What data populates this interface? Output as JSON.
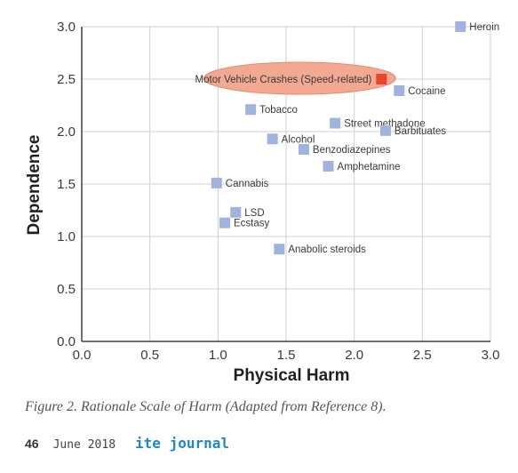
{
  "chart_data": {
    "type": "scatter",
    "xlabel": "Physical Harm",
    "ylabel": "Dependence",
    "xlim": [
      0,
      3
    ],
    "ylim": [
      0,
      3
    ],
    "xticks": [
      "0.0",
      "0.5",
      "1.0",
      "1.5",
      "2.0",
      "2.5",
      "3.0"
    ],
    "yticks": [
      "0.0",
      "0.5",
      "1.0",
      "1.5",
      "2.0",
      "2.5",
      "3.0"
    ],
    "grid": true,
    "highlight_color": "#e8452c",
    "highlight_ellipse_color": "#f3a892",
    "point_color": "#9fb3dd",
    "points": [
      {
        "label": "Heroin",
        "x": 2.78,
        "y": 3.0
      },
      {
        "label": "Motor Vehicle Crashes (Speed-related)",
        "x": 2.2,
        "y": 2.5,
        "highlight": true
      },
      {
        "label": "Cocaine",
        "x": 2.33,
        "y": 2.39
      },
      {
        "label": "Tobacco",
        "x": 1.24,
        "y": 2.21
      },
      {
        "label": "Street methadone",
        "x": 1.86,
        "y": 2.08
      },
      {
        "label": "Barbituates",
        "x": 2.23,
        "y": 2.01
      },
      {
        "label": "Alcohol",
        "x": 1.4,
        "y": 1.93
      },
      {
        "label": "Benzodiazepines",
        "x": 1.63,
        "y": 1.83
      },
      {
        "label": "Amphetamine",
        "x": 1.81,
        "y": 1.67
      },
      {
        "label": "Cannabis",
        "x": 0.99,
        "y": 1.51
      },
      {
        "label": "LSD",
        "x": 1.13,
        "y": 1.23
      },
      {
        "label": "Ecstasy",
        "x": 1.05,
        "y": 1.13
      },
      {
        "label": "Anabolic steroids",
        "x": 1.45,
        "y": 0.88
      }
    ]
  },
  "caption": "Figure 2. Rationale Scale of Harm (Adapted from Reference 8).",
  "footer": {
    "page_number": "46",
    "issue_date": "June 2018",
    "journal_name": "ite journal"
  }
}
